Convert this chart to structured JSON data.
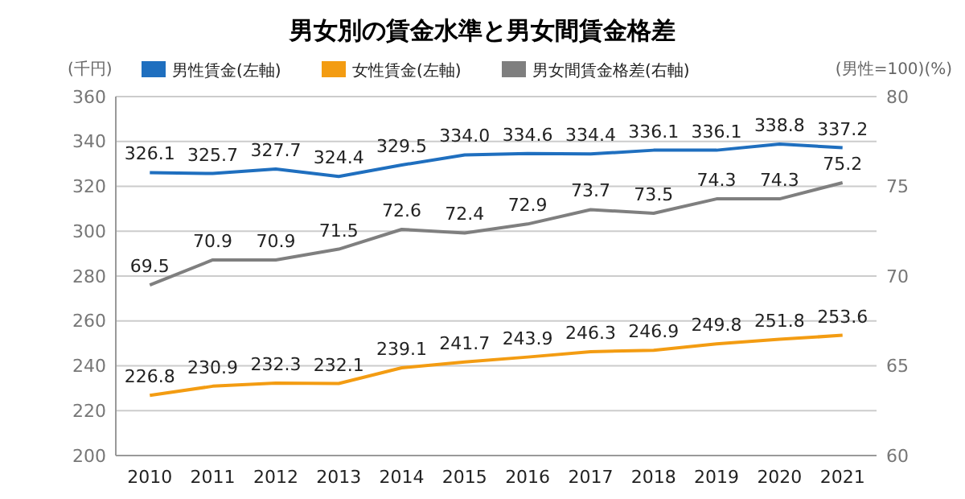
{
  "chart_data": {
    "type": "line",
    "title": "男女別の賃金水準と男女間賃金格差",
    "ylabel": "(千円)",
    "y2label": "(男性=100)(%)",
    "categories": [
      "2010",
      "2011",
      "2012",
      "2013",
      "2014",
      "2015",
      "2016",
      "2017",
      "2018",
      "2019",
      "2020",
      "2021"
    ],
    "series": [
      {
        "name": "男性賃金(左軸)",
        "color": "#1f6fbf",
        "values": [
          326.1,
          325.7,
          327.7,
          324.4,
          329.5,
          334.0,
          334.6,
          334.4,
          336.1,
          336.1,
          338.8,
          337.2
        ],
        "value_labels": [
          "326.1",
          "325.7",
          "327.7",
          "324.4",
          "329.5",
          "334.0",
          "334.6",
          "334.4",
          "336.1",
          "336.1",
          "338.8",
          "337.2"
        ]
      },
      {
        "name": "女性賃金(左軸)",
        "color": "#f39c12",
        "values": [
          226.8,
          230.9,
          232.3,
          232.1,
          239.1,
          241.7,
          243.9,
          246.3,
          246.9,
          249.8,
          251.8,
          253.6
        ],
        "value_labels": [
          "226.8",
          "230.9",
          "232.3",
          "232.1",
          "239.1",
          "241.7",
          "243.9",
          "246.3",
          "246.9",
          "249.8",
          "251.8",
          "253.6"
        ]
      },
      {
        "name": "男女間賃金格差(右軸)",
        "color": "#7f7f7f",
        "axis": "y2",
        "values": [
          69.5,
          70.9,
          70.9,
          71.5,
          72.6,
          72.4,
          72.9,
          73.7,
          73.5,
          74.3,
          74.3,
          75.2
        ],
        "value_labels": [
          "69.5",
          "70.9",
          "70.9",
          "71.5",
          "72.6",
          "72.4",
          "72.9",
          "73.7",
          "73.5",
          "74.3",
          "74.3",
          "75.2"
        ]
      }
    ],
    "ylim": [
      200,
      360
    ],
    "yticks": [
      200,
      220,
      240,
      260,
      280,
      300,
      320,
      340,
      360
    ],
    "y2lim": [
      60,
      80
    ],
    "y2ticks": [
      60,
      65,
      70,
      75,
      80
    ],
    "grid": "y",
    "legend": "top left",
    "marker": "none",
    "line_style": "solid"
  }
}
